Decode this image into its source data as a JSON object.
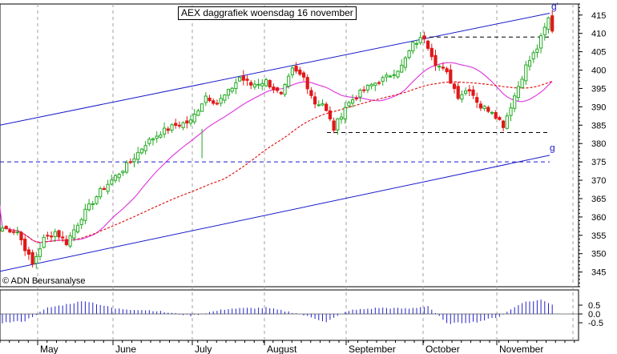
{
  "chart_data": {
    "type": "candlestick",
    "title": "AEX daggrafiek woensdag 16 november",
    "credit": "© ADN Beursanalyse",
    "price_axis": {
      "ylim": [
        341,
        418
      ],
      "ticks": [
        345,
        350,
        355,
        360,
        365,
        370,
        375,
        380,
        385,
        390,
        395,
        400,
        405,
        410,
        415
      ]
    },
    "oscillator_axis": {
      "ticks": [
        "0.5",
        "0.0",
        "-0.5"
      ]
    },
    "months": [
      "May",
      "June",
      "July",
      "August",
      "September",
      "October",
      "November"
    ],
    "channel_labels": {
      "upper": "g'",
      "lower": "g"
    },
    "horizontal_levels": [
      375,
      383,
      409
    ],
    "anchors": [
      {
        "i": 0,
        "v": 357
      },
      {
        "i": 4,
        "v": 356
      },
      {
        "i": 8,
        "v": 347
      },
      {
        "i": 11,
        "v": 354
      },
      {
        "i": 14,
        "v": 356
      },
      {
        "i": 17,
        "v": 353
      },
      {
        "i": 21,
        "v": 360
      },
      {
        "i": 26,
        "v": 367
      },
      {
        "i": 30,
        "v": 371
      },
      {
        "i": 34,
        "v": 375
      },
      {
        "i": 38,
        "v": 380
      },
      {
        "i": 42,
        "v": 383
      },
      {
        "i": 46,
        "v": 385
      },
      {
        "i": 50,
        "v": 386
      },
      {
        "i": 54,
        "v": 393
      },
      {
        "i": 57,
        "v": 391
      },
      {
        "i": 60,
        "v": 394
      },
      {
        "i": 63,
        "v": 398
      },
      {
        "i": 66,
        "v": 396
      },
      {
        "i": 70,
        "v": 397
      },
      {
        "i": 74,
        "v": 393
      },
      {
        "i": 77,
        "v": 400
      },
      {
        "i": 80,
        "v": 398
      },
      {
        "i": 83,
        "v": 391
      },
      {
        "i": 85,
        "v": 391
      },
      {
        "i": 88,
        "v": 384
      },
      {
        "i": 91,
        "v": 390
      },
      {
        "i": 94,
        "v": 393
      },
      {
        "i": 98,
        "v": 396
      },
      {
        "i": 102,
        "v": 398
      },
      {
        "i": 106,
        "v": 401
      },
      {
        "i": 109,
        "v": 407
      },
      {
        "i": 112,
        "v": 409
      },
      {
        "i": 115,
        "v": 402
      },
      {
        "i": 118,
        "v": 399
      },
      {
        "i": 121,
        "v": 393
      },
      {
        "i": 124,
        "v": 395
      },
      {
        "i": 127,
        "v": 390
      },
      {
        "i": 130,
        "v": 389
      },
      {
        "i": 133,
        "v": 385
      },
      {
        "i": 136,
        "v": 393
      },
      {
        "i": 139,
        "v": 401
      },
      {
        "i": 142,
        "v": 406
      },
      {
        "i": 145,
        "v": 414
      },
      {
        "i": 146,
        "v": 411
      }
    ],
    "events": [
      {
        "i": 53,
        "low": 376,
        "high": 384
      }
    ],
    "osc_anchors": [
      {
        "i": 0,
        "v": -0.5
      },
      {
        "i": 6,
        "v": -0.4
      },
      {
        "i": 12,
        "v": 0.35
      },
      {
        "i": 22,
        "v": 0.75
      },
      {
        "i": 30,
        "v": 0.3
      },
      {
        "i": 40,
        "v": 0.2
      },
      {
        "i": 50,
        "v": -0.1
      },
      {
        "i": 60,
        "v": 0.3
      },
      {
        "i": 70,
        "v": 0.35
      },
      {
        "i": 78,
        "v": 0.05
      },
      {
        "i": 86,
        "v": -0.45
      },
      {
        "i": 92,
        "v": 0.2
      },
      {
        "i": 100,
        "v": 0.35
      },
      {
        "i": 108,
        "v": 0.3
      },
      {
        "i": 113,
        "v": 0.45
      },
      {
        "i": 118,
        "v": -0.55
      },
      {
        "i": 126,
        "v": -0.45
      },
      {
        "i": 132,
        "v": -0.15
      },
      {
        "i": 138,
        "v": 0.65
      },
      {
        "i": 143,
        "v": 0.8
      },
      {
        "i": 146,
        "v": 0.55
      }
    ],
    "colors": {
      "up": "#22aa22",
      "down": "#e01818",
      "channel": "#1a1acc",
      "level_line": "#1a1acc",
      "ma_short": "#e040e0",
      "ma_long": "#e01818",
      "oscillator": "#2222cc",
      "grid": "#a0a0a0"
    }
  }
}
